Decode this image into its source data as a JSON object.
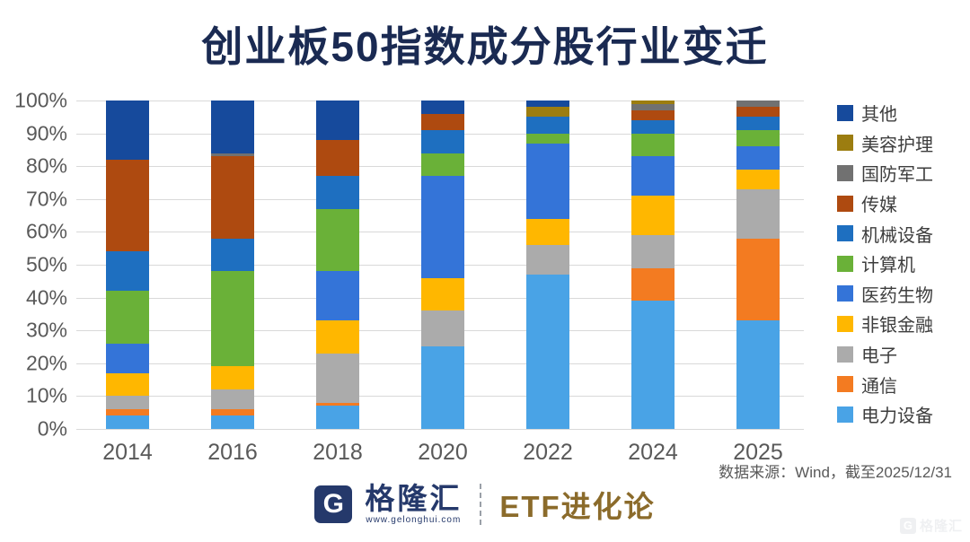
{
  "title": "创业板50指数成分股行业变迁",
  "source_note": "数据来源：Wind，截至2025/12/31",
  "footer": {
    "brand": "格隆汇",
    "brand_url": "www.gelonghui.com",
    "program": "ETF进化论",
    "watermark": "格隆汇"
  },
  "colors": {
    "title": "#1A2A52",
    "axis_text": "#595959",
    "gridline": "#D9D9D9",
    "brand_navy": "#25396B",
    "program_bronze": "#8B6B2B"
  },
  "chart_data": {
    "type": "bar",
    "stacked": true,
    "stacked_total": 100,
    "title": "创业板50指数成分股行业变迁",
    "categories": [
      "2014",
      "2016",
      "2018",
      "2020",
      "2022",
      "2024",
      "2025"
    ],
    "series": [
      {
        "name": "其他",
        "color": "#164A9C",
        "values": [
          18,
          16,
          12,
          4,
          2,
          0,
          0
        ]
      },
      {
        "name": "美容护理",
        "color": "#9C7D10",
        "values": [
          0,
          0,
          0,
          0,
          3,
          1,
          0
        ]
      },
      {
        "name": "国防军工",
        "color": "#717171",
        "values": [
          0,
          1,
          0,
          0,
          0,
          2,
          2
        ]
      },
      {
        "name": "传媒",
        "color": "#AE4A10",
        "values": [
          28,
          25,
          11,
          5,
          0,
          3,
          3
        ]
      },
      {
        "name": "机械设备",
        "color": "#1E6FC0",
        "values": [
          12,
          10,
          10,
          7,
          5,
          4,
          4
        ]
      },
      {
        "name": "计算机",
        "color": "#6AB138",
        "values": [
          16,
          29,
          19,
          7,
          3,
          7,
          5
        ]
      },
      {
        "name": "医药生物",
        "color": "#3474D8",
        "values": [
          9,
          0,
          15,
          31,
          23,
          12,
          7
        ]
      },
      {
        "name": "非银金融",
        "color": "#FFB700",
        "values": [
          7,
          7,
          10,
          10,
          8,
          12,
          6
        ]
      },
      {
        "name": "电子",
        "color": "#ABABAB",
        "values": [
          4,
          6,
          15,
          11,
          9,
          10,
          15
        ]
      },
      {
        "name": "通信",
        "color": "#F37B21",
        "values": [
          2,
          2,
          1,
          0,
          0,
          10,
          25
        ]
      },
      {
        "name": "电力设备",
        "color": "#49A3E6",
        "values": [
          4,
          4,
          7,
          25,
          47,
          39,
          33
        ]
      }
    ],
    "xlabel": "",
    "ylabel": "",
    "ylim": [
      0,
      100
    ],
    "ytick_labels": [
      "0%",
      "10%",
      "20%",
      "30%",
      "40%",
      "50%",
      "60%",
      "70%",
      "80%",
      "90%",
      "100%"
    ],
    "grid": true,
    "legend_position": "right"
  }
}
